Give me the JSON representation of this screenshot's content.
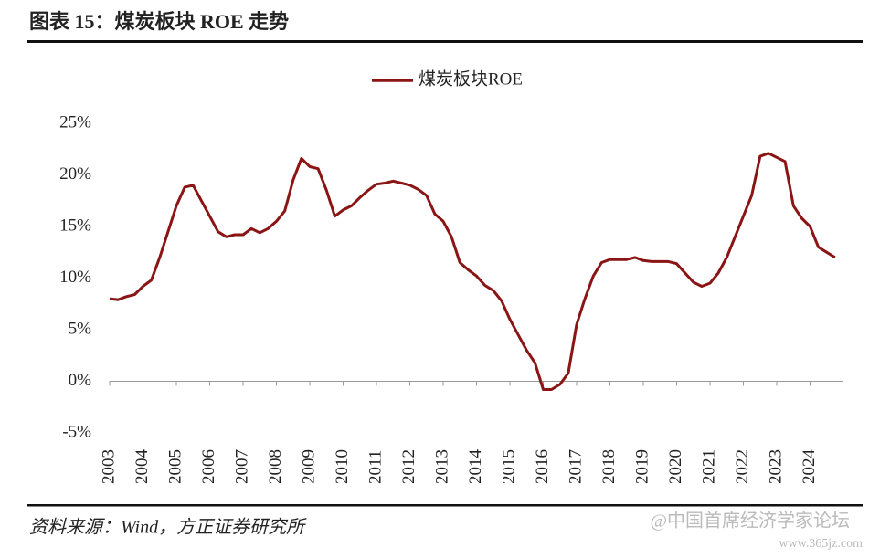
{
  "header": {
    "title": "图表 15：煤炭板块 ROE 走势"
  },
  "chart_data": {
    "type": "line",
    "ylim": [
      -5,
      25
    ],
    "yticks": [
      {
        "value": -5,
        "label": "-5%"
      },
      {
        "value": 0,
        "label": "0%"
      },
      {
        "value": 5,
        "label": "5%"
      },
      {
        "value": 10,
        "label": "10%"
      },
      {
        "value": 15,
        "label": "15%"
      },
      {
        "value": 20,
        "label": "20%"
      },
      {
        "value": 25,
        "label": "25%"
      }
    ],
    "xlim": [
      2003,
      2025
    ],
    "xticks": [
      2003,
      2004,
      2005,
      2006,
      2007,
      2008,
      2009,
      2010,
      2011,
      2012,
      2013,
      2014,
      2015,
      2016,
      2017,
      2018,
      2019,
      2020,
      2021,
      2022,
      2023,
      2024
    ],
    "x": [
      2003.0,
      2003.25,
      2003.5,
      2003.75,
      2004.0,
      2004.25,
      2004.5,
      2004.75,
      2005.0,
      2005.25,
      2005.5,
      2005.75,
      2006.0,
      2006.25,
      2006.5,
      2006.75,
      2007.0,
      2007.25,
      2007.5,
      2007.75,
      2008.0,
      2008.25,
      2008.5,
      2008.75,
      2009.0,
      2009.25,
      2009.5,
      2009.75,
      2010.0,
      2010.25,
      2010.5,
      2010.75,
      2011.0,
      2011.25,
      2011.5,
      2011.75,
      2012.0,
      2012.25,
      2012.5,
      2012.75,
      2013.0,
      2013.25,
      2013.5,
      2013.75,
      2014.0,
      2014.25,
      2014.5,
      2014.75,
      2015.0,
      2015.25,
      2015.5,
      2015.75,
      2016.0,
      2016.25,
      2016.5,
      2016.75,
      2017.0,
      2017.25,
      2017.5,
      2017.75,
      2018.0,
      2018.25,
      2018.5,
      2018.75,
      2019.0,
      2019.25,
      2019.5,
      2019.75,
      2020.0,
      2020.25,
      2020.5,
      2020.75,
      2021.0,
      2021.25,
      2021.5,
      2021.75,
      2022.0,
      2022.25,
      2022.5,
      2022.75,
      2023.0,
      2023.25,
      2023.5,
      2023.75,
      2024.0,
      2024.25,
      2024.5,
      2024.75
    ],
    "series": [
      {
        "name": "煤炭板块ROE",
        "color": "#8b1414",
        "values": [
          8.0,
          7.9,
          8.2,
          8.4,
          9.2,
          9.8,
          12.0,
          14.5,
          17.0,
          18.8,
          19.0,
          17.5,
          16.0,
          14.5,
          14.0,
          14.2,
          14.2,
          14.8,
          14.4,
          14.8,
          15.5,
          16.5,
          19.5,
          21.6,
          20.8,
          20.6,
          18.5,
          16.0,
          16.6,
          17.0,
          17.8,
          18.5,
          19.1,
          19.2,
          19.4,
          19.2,
          19.0,
          18.6,
          18.0,
          16.2,
          15.5,
          14.0,
          11.5,
          10.8,
          10.2,
          9.3,
          8.8,
          7.8,
          6.0,
          4.5,
          3.0,
          1.8,
          -0.8,
          -0.8,
          -0.3,
          0.8,
          5.5,
          8.0,
          10.2,
          11.5,
          11.8,
          11.8,
          11.8,
          12.0,
          11.7,
          11.6,
          11.6,
          11.6,
          11.4,
          10.5,
          9.6,
          9.2,
          9.5,
          10.5,
          12.0,
          14.0,
          16.0,
          18.0,
          21.8,
          22.1,
          21.7,
          21.3,
          17.0,
          15.8,
          15.0,
          13.0,
          12.5,
          12.0
        ]
      }
    ],
    "legend": "top"
  },
  "footer": {
    "source": "资料来源：Wind，方正证券研究所",
    "watermark": "@中国首席经济学家论坛",
    "watermark_url": "www.365jz.com"
  }
}
